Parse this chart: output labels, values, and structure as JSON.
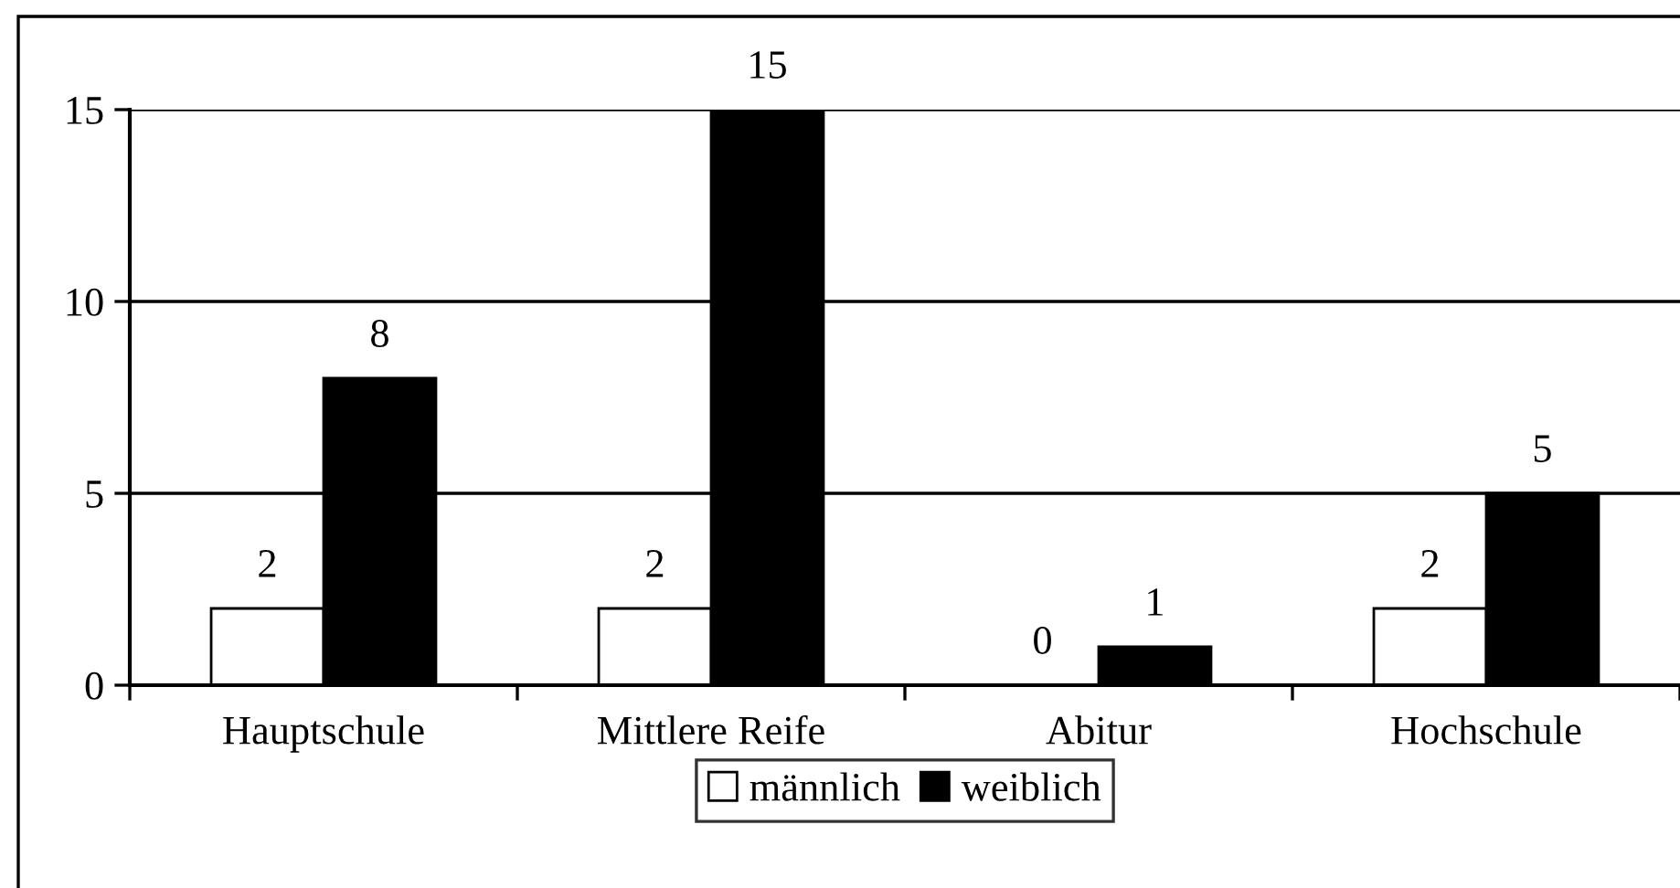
{
  "chart_data": {
    "type": "bar",
    "categories": [
      "Hauptschule",
      "Mittlere Reife",
      "Abitur",
      "Hochschule"
    ],
    "series": [
      {
        "name": "männlich",
        "color": "#ffffff",
        "values": [
          2,
          2,
          0,
          2
        ]
      },
      {
        "name": "weiblich",
        "color": "#000000",
        "values": [
          8,
          15,
          1,
          5
        ]
      }
    ],
    "ylim": [
      0,
      15
    ],
    "yticks": [
      0,
      5,
      10,
      15
    ],
    "grid": "y",
    "legend": "bottom",
    "data_labels": true
  }
}
